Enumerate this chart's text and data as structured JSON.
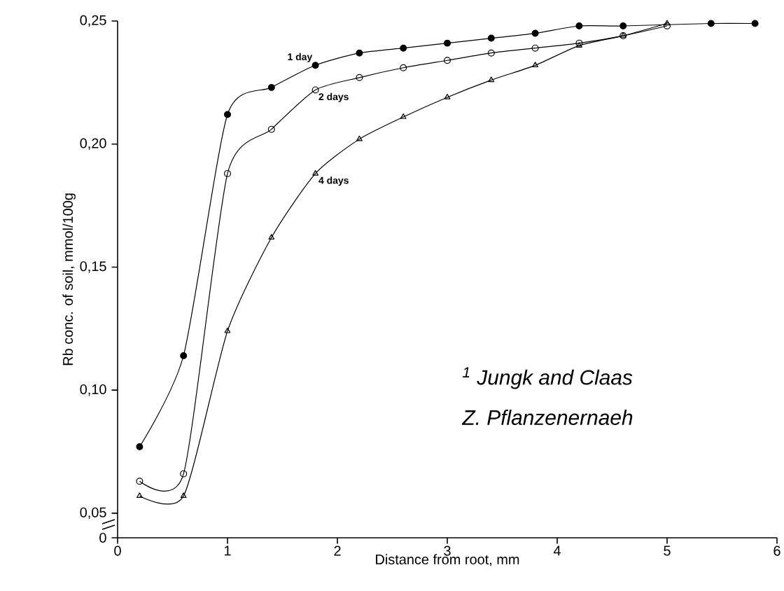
{
  "chart_data": {
    "type": "line",
    "xlabel": "Distance from root, mm",
    "ylabel": "Rb conc. of soil, mmol/100g",
    "xlim": [
      0,
      6
    ],
    "xticks": [
      0,
      1,
      2,
      3,
      4,
      5,
      6
    ],
    "ylim": [
      0.04,
      0.25
    ],
    "yticks": [
      {
        "value": 0.04,
        "label": "0"
      },
      {
        "value": 0.05,
        "label": "0,05"
      },
      {
        "value": 0.1,
        "label": "0,10"
      },
      {
        "value": 0.15,
        "label": "0,15"
      },
      {
        "value": 0.2,
        "label": "0,20"
      },
      {
        "value": 0.25,
        "label": "0,25"
      }
    ],
    "series": [
      {
        "name": "1 day",
        "color": "#000000",
        "marker": "circle",
        "x": [
          0.2,
          0.6,
          1.0,
          1.4,
          1.8,
          2.2,
          2.6,
          3.0,
          3.4,
          3.8,
          4.2,
          4.6,
          5.4,
          5.8
        ],
        "values": [
          0.077,
          0.114,
          0.212,
          0.223,
          0.232,
          0.237,
          0.239,
          0.241,
          0.243,
          0.245,
          0.248,
          0.248,
          0.249,
          0.249
        ]
      },
      {
        "name": "2 days",
        "color": "#000000",
        "marker": "circle",
        "x": [
          0.2,
          0.6,
          1.0,
          1.4,
          1.8,
          2.2,
          2.6,
          3.0,
          3.4,
          3.8,
          4.2,
          4.6,
          5.0
        ],
        "values": [
          0.063,
          0.066,
          0.188,
          0.206,
          0.222,
          0.227,
          0.231,
          0.234,
          0.237,
          0.239,
          0.241,
          0.244,
          0.248
        ]
      },
      {
        "name": "4 days",
        "color": "#000000",
        "marker": "triangle",
        "x": [
          0.2,
          0.6,
          1.0,
          1.4,
          1.8,
          2.2,
          2.6,
          3.0,
          3.4,
          3.8,
          4.2,
          4.6,
          5.0
        ],
        "values": [
          0.057,
          0.057,
          0.124,
          0.162,
          0.188,
          0.202,
          0.211,
          0.219,
          0.226,
          0.232,
          0.24,
          0.244,
          0.249
        ]
      }
    ],
    "annotations": [
      "$^{1}$ Jungk and Claas",
      "Z. Pflanzenernaeh"
    ],
    "legend": false,
    "grid": false
  }
}
